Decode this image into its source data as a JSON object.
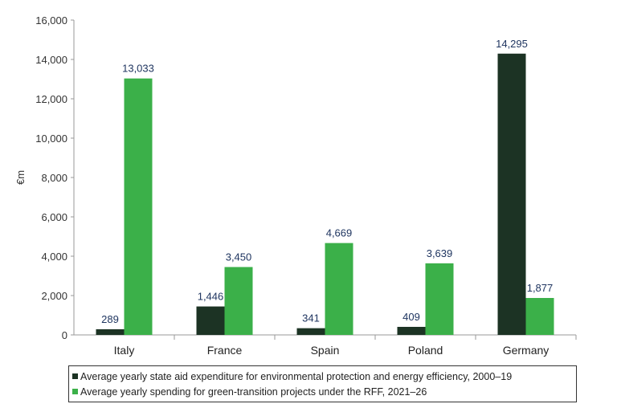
{
  "chart_data": {
    "type": "bar",
    "title": "",
    "xlabel": "",
    "ylabel": "€m",
    "ylim": [
      0,
      16000
    ],
    "yticks": [
      0,
      2000,
      4000,
      6000,
      8000,
      10000,
      12000,
      14000,
      16000
    ],
    "ytick_labels": [
      "0",
      "2,000",
      "4,000",
      "6,000",
      "8,000",
      "10,000",
      "12,000",
      "14,000",
      "16,000"
    ],
    "grid": false,
    "legend_position": "bottom",
    "categories": [
      "Italy",
      "France",
      "Spain",
      "Poland",
      "Germany"
    ],
    "series": [
      {
        "name": "Average yearly state aid expenditure  for environmental  protection and energy efficiency, 2000–19",
        "color": "#1c3324",
        "values": [
          289,
          1446,
          341,
          409,
          14295
        ],
        "labels": [
          "289",
          "1,446",
          "341",
          "409",
          "14,295"
        ]
      },
      {
        "name": "Average yearly spending  for green-transition  projects under  the  RFF, 2021–26",
        "color": "#3bb049",
        "values": [
          13033,
          3450,
          4669,
          3639,
          1877
        ],
        "labels": [
          "13,033",
          "3,450",
          "4,669",
          "3,639",
          "1,877"
        ]
      }
    ]
  }
}
